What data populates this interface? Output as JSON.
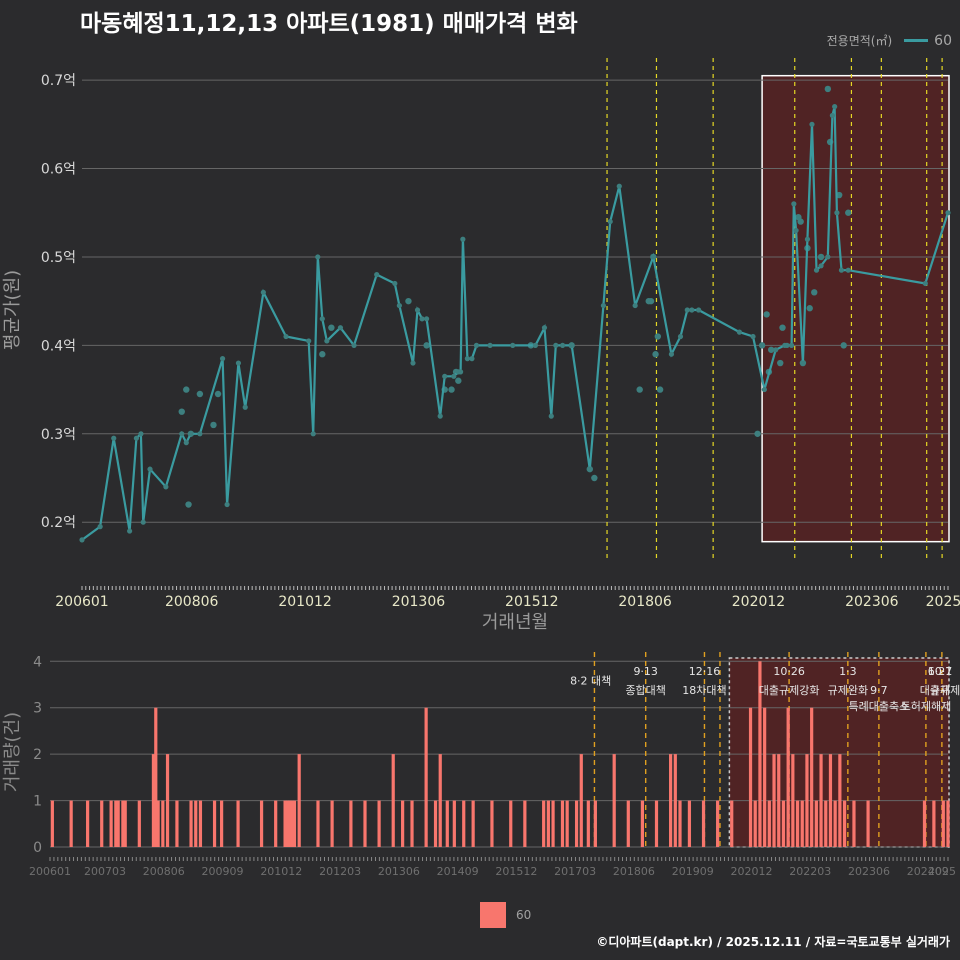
{
  "title": "마동혜정11,12,13 아파트(1981) 매매가격 변화",
  "legend": {
    "title": "전용면적(㎡)",
    "label": "60",
    "line_color": "#3a9ba0",
    "bar_color": "#f8766d"
  },
  "footer": "©디아파트(dapt.kr) / 2025.12.11 / 자료=국토교통부 실거래가",
  "colors": {
    "background": "#2b2b2d",
    "grid": "#666666",
    "vline": "#e5d825",
    "vline_bottom": "#e0a020",
    "highlight": "#5a2222",
    "point": "#3d7f7f"
  },
  "chart_data": [
    {
      "type": "line",
      "ylabel": "평균가(원)",
      "xlabel": "거래년월",
      "ylim": [
        0.155,
        0.725
      ],
      "xlim": [
        2006.0,
        2025.1
      ],
      "yticks": [
        {
          "value": 0.2,
          "label": "0.2억"
        },
        {
          "value": 0.3,
          "label": "0.3억"
        },
        {
          "value": 0.4,
          "label": "0.4억"
        },
        {
          "value": 0.5,
          "label": "0.5억"
        },
        {
          "value": 0.6,
          "label": "0.6억"
        },
        {
          "value": 0.7,
          "label": "0.7억"
        }
      ],
      "xticks": [
        {
          "value": 2006.0,
          "label": "200601"
        },
        {
          "value": 2008.42,
          "label": "200806"
        },
        {
          "value": 2010.92,
          "label": "201012"
        },
        {
          "value": 2013.42,
          "label": "201306"
        },
        {
          "value": 2015.92,
          "label": "201512"
        },
        {
          "value": 2018.42,
          "label": "201806"
        },
        {
          "value": 2020.92,
          "label": "202012"
        },
        {
          "value": 2023.42,
          "label": "202306"
        },
        {
          "value": 2025.0,
          "label": "2025"
        }
      ],
      "policy_lines": [
        2017.58,
        2018.67,
        2019.92,
        2021.72,
        2022.97,
        2023.63,
        2024.63,
        2024.97,
        2025.28
      ],
      "highlight": {
        "x0": 2021.0,
        "x1": 2025.8,
        "y0": 0.178,
        "y1": 0.705
      },
      "series": [
        {
          "name": "60",
          "x": [
            2006.0,
            2006.4,
            2006.7,
            2007.05,
            2007.2,
            2007.3,
            2007.35,
            2007.5,
            2007.85,
            2008.2,
            2008.3,
            2008.4,
            2008.6,
            2009.1,
            2009.2,
            2009.45,
            2009.6,
            2010.0,
            2010.5,
            2011.0,
            2011.1,
            2011.2,
            2011.3,
            2011.4,
            2011.7,
            2012.0,
            2012.5,
            2012.9,
            2013.0,
            2013.3,
            2013.4,
            2013.5,
            2013.6,
            2013.9,
            2014.0,
            2014.2,
            2014.3,
            2014.35,
            2014.4,
            2014.5,
            2014.6,
            2014.7,
            2015.0,
            2015.5,
            2016.0,
            2016.2,
            2016.35,
            2016.45,
            2016.6,
            2016.8,
            2017.2,
            2017.5,
            2017.65,
            2017.85,
            2018.2,
            2018.6,
            2019.0,
            2019.2,
            2019.35,
            2019.45,
            2019.6,
            2020.5,
            2020.8,
            2021.05,
            2021.3,
            2021.5,
            2021.55,
            2021.65,
            2021.7,
            2021.75,
            2021.9,
            2022.0,
            2022.1,
            2022.2,
            2022.3,
            2022.45,
            2022.55,
            2022.6,
            2022.65,
            2022.75,
            2022.9,
            2024.6,
            2025.1
          ],
          "y": [
            0.18,
            0.195,
            0.295,
            0.19,
            0.295,
            0.3,
            0.2,
            0.26,
            0.24,
            0.3,
            0.29,
            0.3,
            0.3,
            0.385,
            0.22,
            0.38,
            0.33,
            0.46,
            0.41,
            0.405,
            0.3,
            0.5,
            0.43,
            0.405,
            0.42,
            0.4,
            0.48,
            0.47,
            0.445,
            0.38,
            0.44,
            0.43,
            0.43,
            0.32,
            0.365,
            0.365,
            0.37,
            0.37,
            0.52,
            0.385,
            0.385,
            0.4,
            0.4,
            0.4,
            0.4,
            0.42,
            0.32,
            0.4,
            0.4,
            0.4,
            0.26,
            0.445,
            0.54,
            0.58,
            0.445,
            0.5,
            0.39,
            0.41,
            0.44,
            0.44,
            0.44,
            0.415,
            0.41,
            0.35,
            0.395,
            0.4,
            0.4,
            0.4,
            0.56,
            0.53,
            0.38,
            0.52,
            0.65,
            0.485,
            0.49,
            0.5,
            0.66,
            0.67,
            0.55,
            0.485,
            0.485,
            0.47,
            0.55
          ]
        }
      ],
      "scatter_points": {
        "x": [
          2008.2,
          2008.3,
          2008.35,
          2008.4,
          2008.6,
          2008.9,
          2009.0,
          2011.3,
          2011.5,
          2013.2,
          2013.6,
          2014.0,
          2014.15,
          2014.25,
          2014.3,
          2015.9,
          2016.8,
          2017.2,
          2017.3,
          2018.3,
          2018.5,
          2018.55,
          2018.6,
          2018.65,
          2018.7,
          2018.75,
          2020.9,
          2021.0,
          2021.1,
          2021.15,
          2021.2,
          2021.4,
          2021.45,
          2021.8,
          2021.85,
          2021.9,
          2022.0,
          2022.05,
          2022.15,
          2022.3,
          2022.45,
          2022.5,
          2022.7,
          2022.8,
          2022.9
        ],
        "y": [
          0.325,
          0.35,
          0.22,
          0.3,
          0.345,
          0.31,
          0.345,
          0.39,
          0.42,
          0.45,
          0.4,
          0.35,
          0.35,
          0.37,
          0.36,
          0.4,
          0.4,
          0.26,
          0.25,
          0.35,
          0.45,
          0.45,
          0.5,
          0.39,
          0.41,
          0.35,
          0.3,
          0.4,
          0.435,
          0.37,
          0.395,
          0.38,
          0.42,
          0.545,
          0.54,
          0.38,
          0.51,
          0.442,
          0.46,
          0.5,
          0.69,
          0.63,
          0.57,
          0.4,
          0.55
        ]
      }
    },
    {
      "type": "bar",
      "ylabel": "거래량(건)",
      "ylim": [
        0,
        4.2
      ],
      "xlim": [
        2006.0,
        2025.1
      ],
      "yticks": [
        {
          "value": 0,
          "label": "0"
        },
        {
          "value": 1,
          "label": "1"
        },
        {
          "value": 2,
          "label": "2"
        },
        {
          "value": 3,
          "label": "3"
        },
        {
          "value": 4,
          "label": "4"
        }
      ],
      "xticks": [
        {
          "value": 2006.0,
          "label": "200601"
        },
        {
          "value": 2007.17,
          "label": "200703"
        },
        {
          "value": 2008.42,
          "label": "200806"
        },
        {
          "value": 2009.67,
          "label": "200909"
        },
        {
          "value": 2010.92,
          "label": "201012"
        },
        {
          "value": 2012.17,
          "label": "201203"
        },
        {
          "value": 2013.42,
          "label": "201306"
        },
        {
          "value": 2014.67,
          "label": "201409"
        },
        {
          "value": 2015.92,
          "label": "201512"
        },
        {
          "value": 2017.17,
          "label": "201703"
        },
        {
          "value": 2018.42,
          "label": "201806"
        },
        {
          "value": 2019.67,
          "label": "201909"
        },
        {
          "value": 2020.92,
          "label": "202012"
        },
        {
          "value": 2022.17,
          "label": "202203"
        },
        {
          "value": 2023.42,
          "label": "202306"
        },
        {
          "value": 2024.67,
          "label": "202409"
        },
        {
          "value": 2025.0,
          "label": "2025"
        }
      ],
      "policy_lines": [
        2017.58,
        2018.67,
        2019.92,
        2020.25,
        2021.72,
        2022.97,
        2023.63,
        2024.63,
        2024.97,
        2025.28
      ],
      "highlight": {
        "x0": 2020.45,
        "x1": 2025.8,
        "y0": 0,
        "y1": 4.2
      },
      "annotations": [
        {
          "x": 2017.5,
          "y": 3.5,
          "label": "8·2 대책"
        },
        {
          "x": 2018.67,
          "y": 3.7,
          "label": "9·13"
        },
        {
          "x": 2018.67,
          "y": 3.3,
          "label": "종합대책"
        },
        {
          "x": 2019.92,
          "y": 3.7,
          "label": "12·16"
        },
        {
          "x": 2019.92,
          "y": 3.3,
          "label": "18차대책"
        },
        {
          "x": 2021.72,
          "y": 3.7,
          "label": "10·26"
        },
        {
          "x": 2021.72,
          "y": 3.3,
          "label": "대출규제강화"
        },
        {
          "x": 2022.97,
          "y": 3.7,
          "label": "1·3"
        },
        {
          "x": 2022.97,
          "y": 3.3,
          "label": "규제완화"
        },
        {
          "x": 2023.63,
          "y": 3.3,
          "label": "9·7"
        },
        {
          "x": 2023.63,
          "y": 2.95,
          "label": "특례대출축소"
        },
        {
          "x": 2024.63,
          "y": 2.95,
          "label": "토허제해제"
        },
        {
          "x": 2024.97,
          "y": 3.7,
          "label": "6·27"
        },
        {
          "x": 2024.97,
          "y": 3.3,
          "label": "대출규제"
        },
        {
          "x": 2025.28,
          "y": 3.7,
          "label": "10·1"
        },
        {
          "x": 2025.28,
          "y": 3.3,
          "label": "규제"
        }
      ],
      "x": [
        2006.05,
        2006.45,
        2006.8,
        2007.1,
        2007.3,
        2007.4,
        2007.45,
        2007.55,
        2007.6,
        2007.9,
        2008.2,
        2008.25,
        2008.3,
        2008.4,
        2008.5,
        2008.7,
        2009.0,
        2009.1,
        2009.2,
        2009.5,
        2009.65,
        2010.0,
        2010.5,
        2010.8,
        2011.0,
        2011.05,
        2011.1,
        2011.15,
        2011.2,
        2011.3,
        2011.7,
        2012.0,
        2012.4,
        2012.7,
        2013.0,
        2013.3,
        2013.5,
        2013.7,
        2014.0,
        2014.2,
        2014.3,
        2014.45,
        2014.6,
        2014.8,
        2015.0,
        2015.4,
        2015.8,
        2016.1,
        2016.5,
        2016.6,
        2016.7,
        2016.9,
        2017.0,
        2017.2,
        2017.3,
        2017.45,
        2017.6,
        2018.0,
        2018.3,
        2018.6,
        2018.9,
        2019.2,
        2019.3,
        2019.4,
        2019.6,
        2019.9,
        2020.2,
        2020.5,
        2020.9,
        2021.0,
        2021.1,
        2021.2,
        2021.3,
        2021.4,
        2021.5,
        2021.6,
        2021.7,
        2021.8,
        2021.9,
        2022.0,
        2022.1,
        2022.2,
        2022.3,
        2022.4,
        2022.5,
        2022.6,
        2022.7,
        2022.8,
        2022.9,
        2023.1,
        2023.4,
        2024.6,
        2024.8,
        2025.0,
        2025.1
      ],
      "values": [
        1,
        1,
        1,
        1,
        1,
        1,
        1,
        1,
        1,
        1,
        2,
        3,
        1,
        1,
        2,
        1,
        1,
        1,
        1,
        1,
        1,
        1,
        1,
        1,
        1,
        1,
        1,
        1,
        1,
        2,
        1,
        1,
        1,
        1,
        1,
        2,
        1,
        1,
        3,
        1,
        2,
        1,
        1,
        1,
        1,
        1,
        1,
        1,
        1,
        1,
        1,
        1,
        1,
        1,
        2,
        1,
        1,
        2,
        1,
        1,
        1,
        2,
        2,
        1,
        1,
        1,
        1,
        1,
        3,
        1,
        4,
        3,
        1,
        2,
        2,
        1,
        3,
        2,
        1,
        1,
        2,
        3,
        1,
        2,
        1,
        2,
        1,
        2,
        1,
        1,
        1,
        1,
        1,
        1,
        1
      ]
    }
  ]
}
